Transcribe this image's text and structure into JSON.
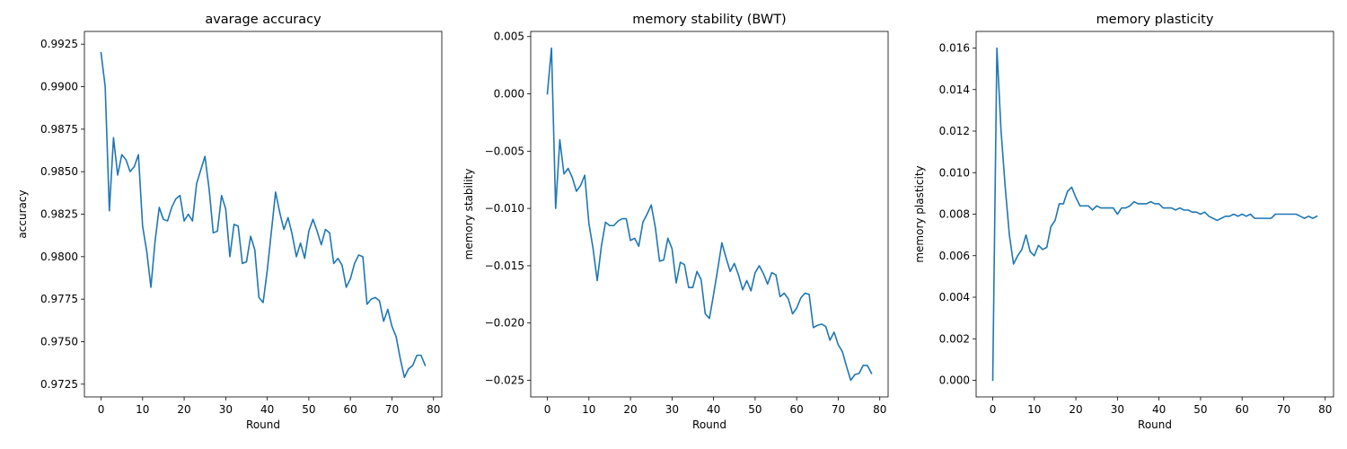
{
  "chart_data": [
    {
      "type": "line",
      "title": "avarage accuracy",
      "xlabel": "Round",
      "ylabel": "accuracy",
      "xlim": [
        -4,
        82
      ],
      "ylim": [
        0.97175,
        0.99325
      ],
      "xticks": [
        0,
        10,
        20,
        30,
        40,
        50,
        60,
        70,
        80
      ],
      "xtick_labels": [
        "0",
        "10",
        "20",
        "30",
        "40",
        "50",
        "60",
        "70",
        "80"
      ],
      "yticks": [
        0.9725,
        0.975,
        0.9775,
        0.98,
        0.9825,
        0.985,
        0.9875,
        0.99,
        0.9925
      ],
      "ytick_labels": [
        "0.9725",
        "0.9750",
        "0.9775",
        "0.9800",
        "0.9825",
        "0.9850",
        "0.9875",
        "0.9900",
        "0.9925"
      ],
      "grid": false,
      "color": "#1f77b4",
      "x": [
        0,
        1,
        2,
        3,
        4,
        5,
        6,
        7,
        8,
        9,
        10,
        11,
        12,
        13,
        14,
        15,
        16,
        17,
        18,
        19,
        20,
        21,
        22,
        23,
        24,
        25,
        26,
        27,
        28,
        29,
        30,
        31,
        32,
        33,
        34,
        35,
        36,
        37,
        38,
        39,
        40,
        41,
        42,
        43,
        44,
        45,
        46,
        47,
        48,
        49,
        50,
        51,
        52,
        53,
        54,
        55,
        56,
        57,
        58,
        59,
        60,
        61,
        62,
        63,
        64,
        65,
        66,
        67,
        68,
        69,
        70,
        71,
        72,
        73,
        74,
        75,
        76,
        77,
        78
      ],
      "y": [
        0.992,
        0.99,
        0.9827,
        0.987,
        0.9848,
        0.986,
        0.9857,
        0.985,
        0.9853,
        0.986,
        0.9818,
        0.9803,
        0.9782,
        0.9809,
        0.9829,
        0.9822,
        0.9821,
        0.9829,
        0.9834,
        0.9836,
        0.9821,
        0.9825,
        0.9821,
        0.9843,
        0.9851,
        0.9859,
        0.984,
        0.9814,
        0.9815,
        0.9836,
        0.9828,
        0.98,
        0.9819,
        0.9818,
        0.9796,
        0.9797,
        0.9812,
        0.9804,
        0.9776,
        0.9773,
        0.9792,
        0.9815,
        0.9838,
        0.9826,
        0.9816,
        0.9823,
        0.9813,
        0.98,
        0.9808,
        0.9799,
        0.9815,
        0.9822,
        0.9815,
        0.9807,
        0.9816,
        0.9814,
        0.9796,
        0.9799,
        0.9795,
        0.9782,
        0.9787,
        0.9796,
        0.9801,
        0.98,
        0.9772,
        0.9775,
        0.9776,
        0.9774,
        0.9762,
        0.9769,
        0.9759,
        0.9753,
        0.974,
        0.9729,
        0.9734,
        0.9736,
        0.9742,
        0.9742,
        0.9736
      ]
    },
    {
      "type": "line",
      "title": "memory stability (BWT)",
      "xlabel": "Round",
      "ylabel": "memory stability",
      "xlim": [
        -4,
        82
      ],
      "ylim": [
        -0.02645,
        0.00545
      ],
      "xticks": [
        0,
        10,
        20,
        30,
        40,
        50,
        60,
        70,
        80
      ],
      "xtick_labels": [
        "0",
        "10",
        "20",
        "30",
        "40",
        "50",
        "60",
        "70",
        "80"
      ],
      "yticks": [
        -0.025,
        -0.02,
        -0.015,
        -0.01,
        -0.005,
        0,
        0.005
      ],
      "ytick_labels": [
        "−0.025",
        "−0.020",
        "−0.015",
        "−0.010",
        "−0.005",
        "0.000",
        "0.005"
      ],
      "grid": false,
      "color": "#1f77b4",
      "x": [
        0,
        1,
        2,
        3,
        4,
        5,
        6,
        7,
        8,
        9,
        10,
        11,
        12,
        13,
        14,
        15,
        16,
        17,
        18,
        19,
        20,
        21,
        22,
        23,
        24,
        25,
        26,
        27,
        28,
        29,
        30,
        31,
        32,
        33,
        34,
        35,
        36,
        37,
        38,
        39,
        40,
        41,
        42,
        43,
        44,
        45,
        46,
        47,
        48,
        49,
        50,
        51,
        52,
        53,
        54,
        55,
        56,
        57,
        58,
        59,
        60,
        61,
        62,
        63,
        64,
        65,
        66,
        67,
        68,
        69,
        70,
        71,
        72,
        73,
        74,
        75,
        76,
        77,
        78
      ],
      "y": [
        0.0,
        0.004,
        -0.01,
        -0.004,
        -0.007,
        -0.0065,
        -0.0073,
        -0.0085,
        -0.008,
        -0.0071,
        -0.0113,
        -0.0135,
        -0.0163,
        -0.0133,
        -0.0112,
        -0.0115,
        -0.0115,
        -0.0111,
        -0.0109,
        -0.0109,
        -0.0128,
        -0.0126,
        -0.0133,
        -0.0112,
        -0.0105,
        -0.0097,
        -0.0117,
        -0.0146,
        -0.0145,
        -0.0126,
        -0.0135,
        -0.0165,
        -0.0147,
        -0.0149,
        -0.0169,
        -0.0169,
        -0.0155,
        -0.0162,
        -0.0192,
        -0.0196,
        -0.0175,
        -0.0153,
        -0.013,
        -0.0143,
        -0.0155,
        -0.0148,
        -0.0158,
        -0.0171,
        -0.0163,
        -0.0172,
        -0.0156,
        -0.015,
        -0.0157,
        -0.0166,
        -0.0156,
        -0.0158,
        -0.0177,
        -0.0174,
        -0.0179,
        -0.0192,
        -0.0187,
        -0.0178,
        -0.0174,
        -0.0175,
        -0.0204,
        -0.0202,
        -0.0201,
        -0.0203,
        -0.0215,
        -0.0208,
        -0.0219,
        -0.0225,
        -0.0238,
        -0.025,
        -0.0245,
        -0.0244,
        -0.0237,
        -0.0237,
        -0.0244
      ]
    },
    {
      "type": "line",
      "title": "memory plasticity",
      "xlabel": "Round",
      "ylabel": "memory plasticity",
      "xlim": [
        -4,
        82
      ],
      "ylim": [
        -0.0008,
        0.0168
      ],
      "xticks": [
        0,
        10,
        20,
        30,
        40,
        50,
        60,
        70,
        80
      ],
      "xtick_labels": [
        "0",
        "10",
        "20",
        "30",
        "40",
        "50",
        "60",
        "70",
        "80"
      ],
      "yticks": [
        0,
        0.002,
        0.004,
        0.006,
        0.008,
        0.01,
        0.012,
        0.014,
        0.016
      ],
      "ytick_labels": [
        "0.000",
        "0.002",
        "0.004",
        "0.006",
        "0.008",
        "0.010",
        "0.012",
        "0.014",
        "0.016"
      ],
      "grid": false,
      "color": "#1f77b4",
      "x": [
        0,
        1,
        2,
        3,
        4,
        5,
        6,
        7,
        8,
        9,
        10,
        11,
        12,
        13,
        14,
        15,
        16,
        17,
        18,
        19,
        20,
        21,
        22,
        23,
        24,
        25,
        26,
        27,
        28,
        29,
        30,
        31,
        32,
        33,
        34,
        35,
        36,
        37,
        38,
        39,
        40,
        41,
        42,
        43,
        44,
        45,
        46,
        47,
        48,
        49,
        50,
        51,
        52,
        53,
        54,
        55,
        56,
        57,
        58,
        59,
        60,
        61,
        62,
        63,
        64,
        65,
        66,
        67,
        68,
        69,
        70,
        71,
        72,
        73,
        74,
        75,
        76,
        77,
        78
      ],
      "y": [
        0.0,
        0.016,
        0.012,
        0.0093,
        0.007,
        0.0056,
        0.006,
        0.0063,
        0.007,
        0.0062,
        0.006,
        0.0065,
        0.0063,
        0.0064,
        0.0074,
        0.0077,
        0.0085,
        0.0085,
        0.0091,
        0.0093,
        0.0088,
        0.0084,
        0.0084,
        0.0084,
        0.0082,
        0.0084,
        0.0083,
        0.0083,
        0.0083,
        0.0083,
        0.008,
        0.0083,
        0.0083,
        0.0084,
        0.0086,
        0.0085,
        0.0085,
        0.0085,
        0.0086,
        0.0085,
        0.0085,
        0.0083,
        0.0083,
        0.0083,
        0.0082,
        0.0083,
        0.0082,
        0.0082,
        0.0081,
        0.0081,
        0.008,
        0.0081,
        0.0079,
        0.0078,
        0.0077,
        0.0078,
        0.0079,
        0.0079,
        0.008,
        0.0079,
        0.008,
        0.0079,
        0.008,
        0.0078,
        0.0078,
        0.0078,
        0.0078,
        0.0078,
        0.008,
        0.008,
        0.008,
        0.008,
        0.008,
        0.008,
        0.0079,
        0.0078,
        0.0079,
        0.0078,
        0.0079
      ]
    }
  ]
}
